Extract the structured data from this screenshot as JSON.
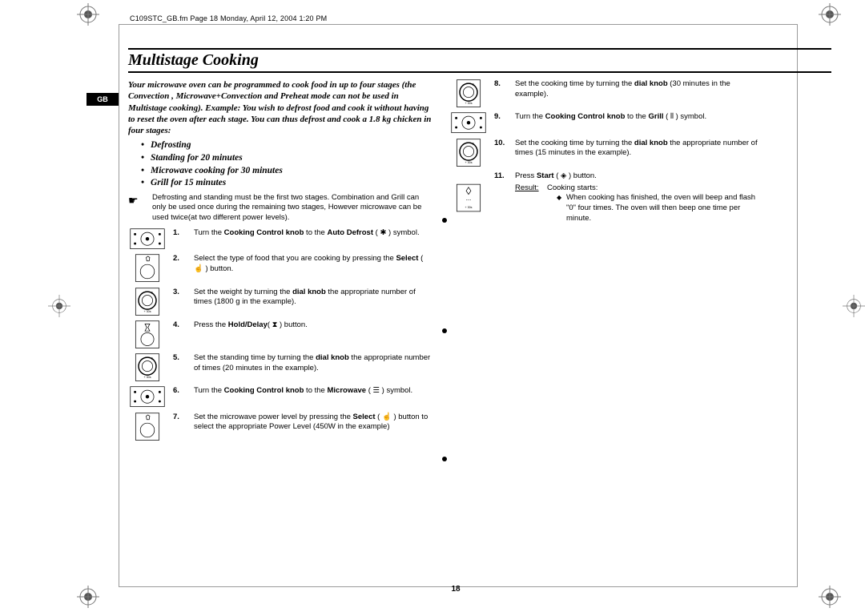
{
  "header": "C109STC_GB.fm  Page 18  Monday, April 12, 2004  1:20 PM",
  "title": "Multistage Cooking",
  "gb": "GB",
  "intro": "Your microwave oven can be programmed to cook food in up to four stages (the Convection , Microwave+Convection and Preheat mode can not be used in Multistage cooking). Example: You wish to defrost food and cook it without having to reset the oven after each stage. You can thus defrost and cook a 1.8 kg chicken in four stages:",
  "bullets": [
    "Defrosting",
    "Standing for 20 minutes",
    "Microwave cooking for 30 minutes",
    "Grill for 15 minutes"
  ],
  "note": "Defrosting and standing must be the first two stages. Combination and Grill can only be used once during the remaining two stages, However microwave can be used twice(at two different power levels).",
  "steps": [
    {
      "n": "1.",
      "t": "Turn the <b>Cooking Control knob</b> to the <b>Auto Defrost</b> ( ✱ ) symbol."
    },
    {
      "n": "2.",
      "t": "Select the type of food that you are cooking by pressing the <b>Select</b> ( ☝ ) button."
    },
    {
      "n": "3.",
      "t": "Set the weight by turning the <b>dial knob</b> the appropriate number of times (1800 g in the example)."
    },
    {
      "n": "4.",
      "t": "Press the <b>Hold/Delay</b>( ⧗ ) button."
    },
    {
      "n": "5.",
      "t": "Set the standing time by turning the <b>dial knob</b> the appropriate number of times (20 minutes in the example)."
    },
    {
      "n": "6.",
      "t": "Turn the <b>Cooking Control knob</b> to the <b>Microwave</b> ( ☰ ) symbol."
    },
    {
      "n": "7.",
      "t": "Set the microwave power level by pressing the <b>Select</b> ( ☝ ) button to select the appropriate Power Level (450W in the example)"
    }
  ],
  "steps_r": [
    {
      "n": "8.",
      "t": "Set the cooking time by turning the <b>dial knob</b> (30 minutes in the example)."
    },
    {
      "n": "9.",
      "t": "Turn the <b>Cooking Control knob</b> to the <b>Grill</b> ( ⫴ ) symbol."
    },
    {
      "n": "10.",
      "t": "Set the cooking time by turning the <b>dial knob</b> the appropriate number of times (15 minutes in the example)."
    },
    {
      "n": "11.",
      "t": "Press <b>Start</b> ( ◈ ) button."
    }
  ],
  "result_label": "Result:",
  "result_text": "Cooking starts:",
  "result_sub": "When cooking has finished, the oven will beep and flash \"0\" four times. The oven will then beep one time per minute.",
  "pagenum": "18"
}
